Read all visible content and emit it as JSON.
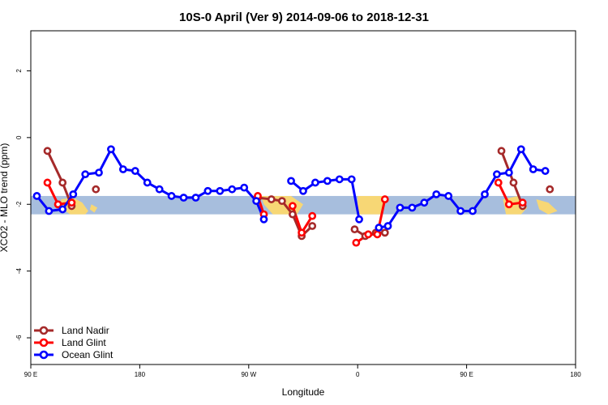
{
  "chart_data": {
    "type": "line",
    "title": "10S-0 April (Ver 9)   2014-09-06 to 2018-12-31",
    "xlabel": "Longitude",
    "ylabel": "XCO2 - MLO trend (ppm)",
    "xlim": [
      90,
      450
    ],
    "ylim": [
      -6.8,
      3.2
    ],
    "xticks": [
      {
        "value": 90,
        "label": "90 E"
      },
      {
        "value": 162,
        "label": "180"
      },
      {
        "value": 234,
        "label": "90 W"
      },
      {
        "value": 306,
        "label": "0"
      },
      {
        "value": 378,
        "label": "90 E"
      },
      {
        "value": 450,
        "label": "180"
      }
    ],
    "yticks": [
      {
        "value": 2,
        "label": "2"
      },
      {
        "value": 0,
        "label": "0"
      },
      {
        "value": -2,
        "label": "-2"
      },
      {
        "value": -4,
        "label": "-4"
      },
      {
        "value": -6,
        "label": "-6"
      }
    ],
    "band": {
      "from": -2.3,
      "to": -1.75,
      "color": "#a7bedd"
    },
    "land_color": "#f7d775",
    "grid": false,
    "legend_position": "bottom-left",
    "series": [
      {
        "name": "Land Nadir",
        "color": "#a52a2a",
        "segments": [
          [
            [
              101,
              -0.4
            ],
            [
              111,
              -1.35
            ],
            [
              117,
              -2.05
            ]
          ],
          [
            [
              133,
              -1.55
            ]
          ],
          [
            [
              240,
              -1.8
            ],
            [
              249,
              -1.85
            ],
            [
              256,
              -1.9
            ],
            [
              263,
              -2.3
            ],
            [
              269,
              -2.95
            ],
            [
              276,
              -2.65
            ]
          ],
          [
            [
              304,
              -2.75
            ],
            [
              311,
              -2.95
            ],
            [
              318,
              -2.85
            ],
            [
              324,
              -2.85
            ]
          ],
          [
            [
              401,
              -0.4
            ],
            [
              409,
              -1.35
            ],
            [
              415,
              -2.05
            ]
          ],
          [
            [
              433,
              -1.55
            ]
          ]
        ]
      },
      {
        "name": "Land Glint",
        "color": "#ff0000",
        "segments": [
          [
            [
              101,
              -1.35
            ],
            [
              108,
              -2.0
            ],
            [
              117,
              -1.95
            ]
          ],
          [
            [
              240,
              -1.75
            ],
            [
              244,
              -2.3
            ]
          ],
          [
            [
              263,
              -2.05
            ],
            [
              269,
              -2.85
            ],
            [
              276,
              -2.35
            ]
          ],
          [
            [
              305,
              -3.15
            ],
            [
              313,
              -2.9
            ],
            [
              319,
              -2.9
            ],
            [
              324,
              -1.85
            ]
          ],
          [
            [
              399,
              -1.35
            ],
            [
              406,
              -2.0
            ],
            [
              415,
              -1.95
            ]
          ]
        ]
      },
      {
        "name": "Ocean Glint",
        "color": "#0000ff",
        "segments": [
          [
            [
              94,
              -1.75
            ],
            [
              102,
              -2.2
            ],
            [
              111,
              -2.15
            ],
            [
              118,
              -1.7
            ],
            [
              126,
              -1.1
            ],
            [
              135,
              -1.05
            ],
            [
              143,
              -0.35
            ],
            [
              151,
              -0.95
            ],
            [
              159,
              -1.0
            ],
            [
              167,
              -1.35
            ],
            [
              175,
              -1.55
            ],
            [
              183,
              -1.75
            ],
            [
              191,
              -1.8
            ],
            [
              199,
              -1.8
            ],
            [
              207,
              -1.6
            ],
            [
              215,
              -1.6
            ],
            [
              223,
              -1.55
            ],
            [
              231,
              -1.5
            ],
            [
              239,
              -1.9
            ],
            [
              244,
              -2.45
            ]
          ],
          [
            [
              262,
              -1.3
            ],
            [
              270,
              -1.6
            ],
            [
              278,
              -1.35
            ],
            [
              286,
              -1.3
            ],
            [
              294,
              -1.25
            ],
            [
              302,
              -1.25
            ],
            [
              307,
              -2.45
            ]
          ],
          [
            [
              320,
              -2.7
            ],
            [
              326,
              -2.65
            ],
            [
              334,
              -2.1
            ],
            [
              342,
              -2.1
            ],
            [
              350,
              -1.95
            ],
            [
              358,
              -1.7
            ],
            [
              366,
              -1.75
            ],
            [
              374,
              -2.2
            ],
            [
              382,
              -2.2
            ],
            [
              390,
              -1.7
            ],
            [
              398,
              -1.1
            ],
            [
              406,
              -1.05
            ],
            [
              414,
              -0.35
            ],
            [
              422,
              -0.95
            ],
            [
              430,
              -1.0
            ]
          ]
        ]
      }
    ]
  }
}
